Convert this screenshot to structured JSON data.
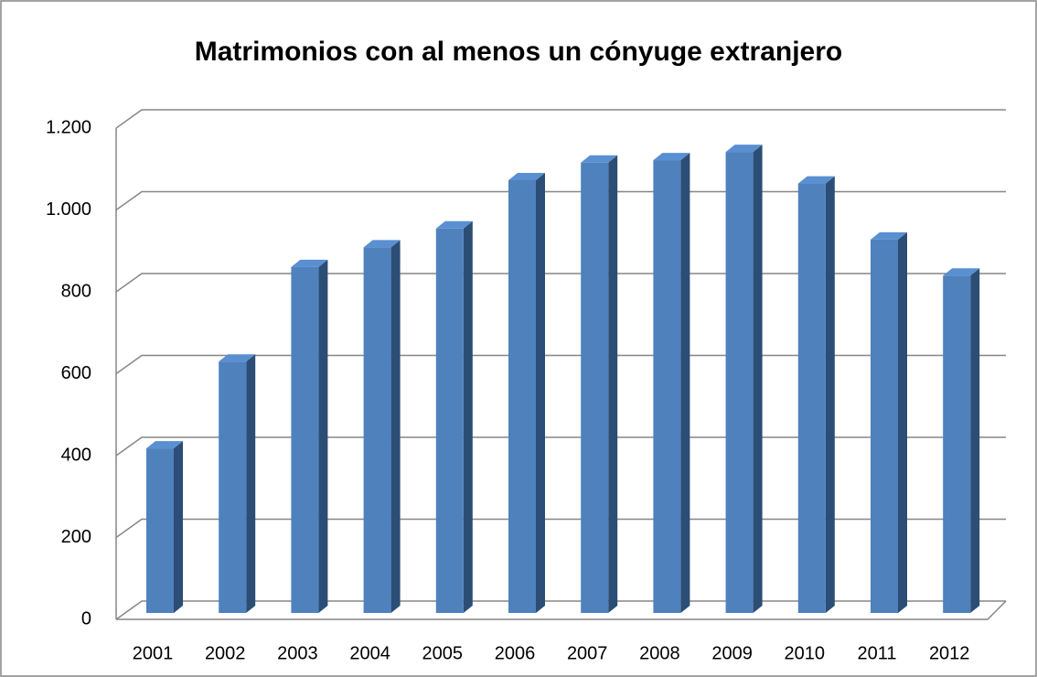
{
  "chart_data": {
    "type": "bar3d",
    "title": "Matrimonios con al menos un cónyuge extranjero",
    "categories": [
      "2001",
      "2002",
      "2003",
      "2004",
      "2005",
      "2006",
      "2007",
      "2008",
      "2009",
      "2010",
      "2011",
      "2012"
    ],
    "values": [
      402,
      614,
      845,
      893,
      939,
      1057,
      1100,
      1106,
      1126,
      1049,
      912,
      824
    ],
    "color": "#4f81bd",
    "ylim": [
      0,
      1200
    ],
    "yticks": [
      0,
      200,
      400,
      600,
      800,
      {
        "value": 1000,
        "label": "1.000"
      },
      {
        "value": 1200,
        "label": "1.200"
      }
    ],
    "grid": true
  }
}
